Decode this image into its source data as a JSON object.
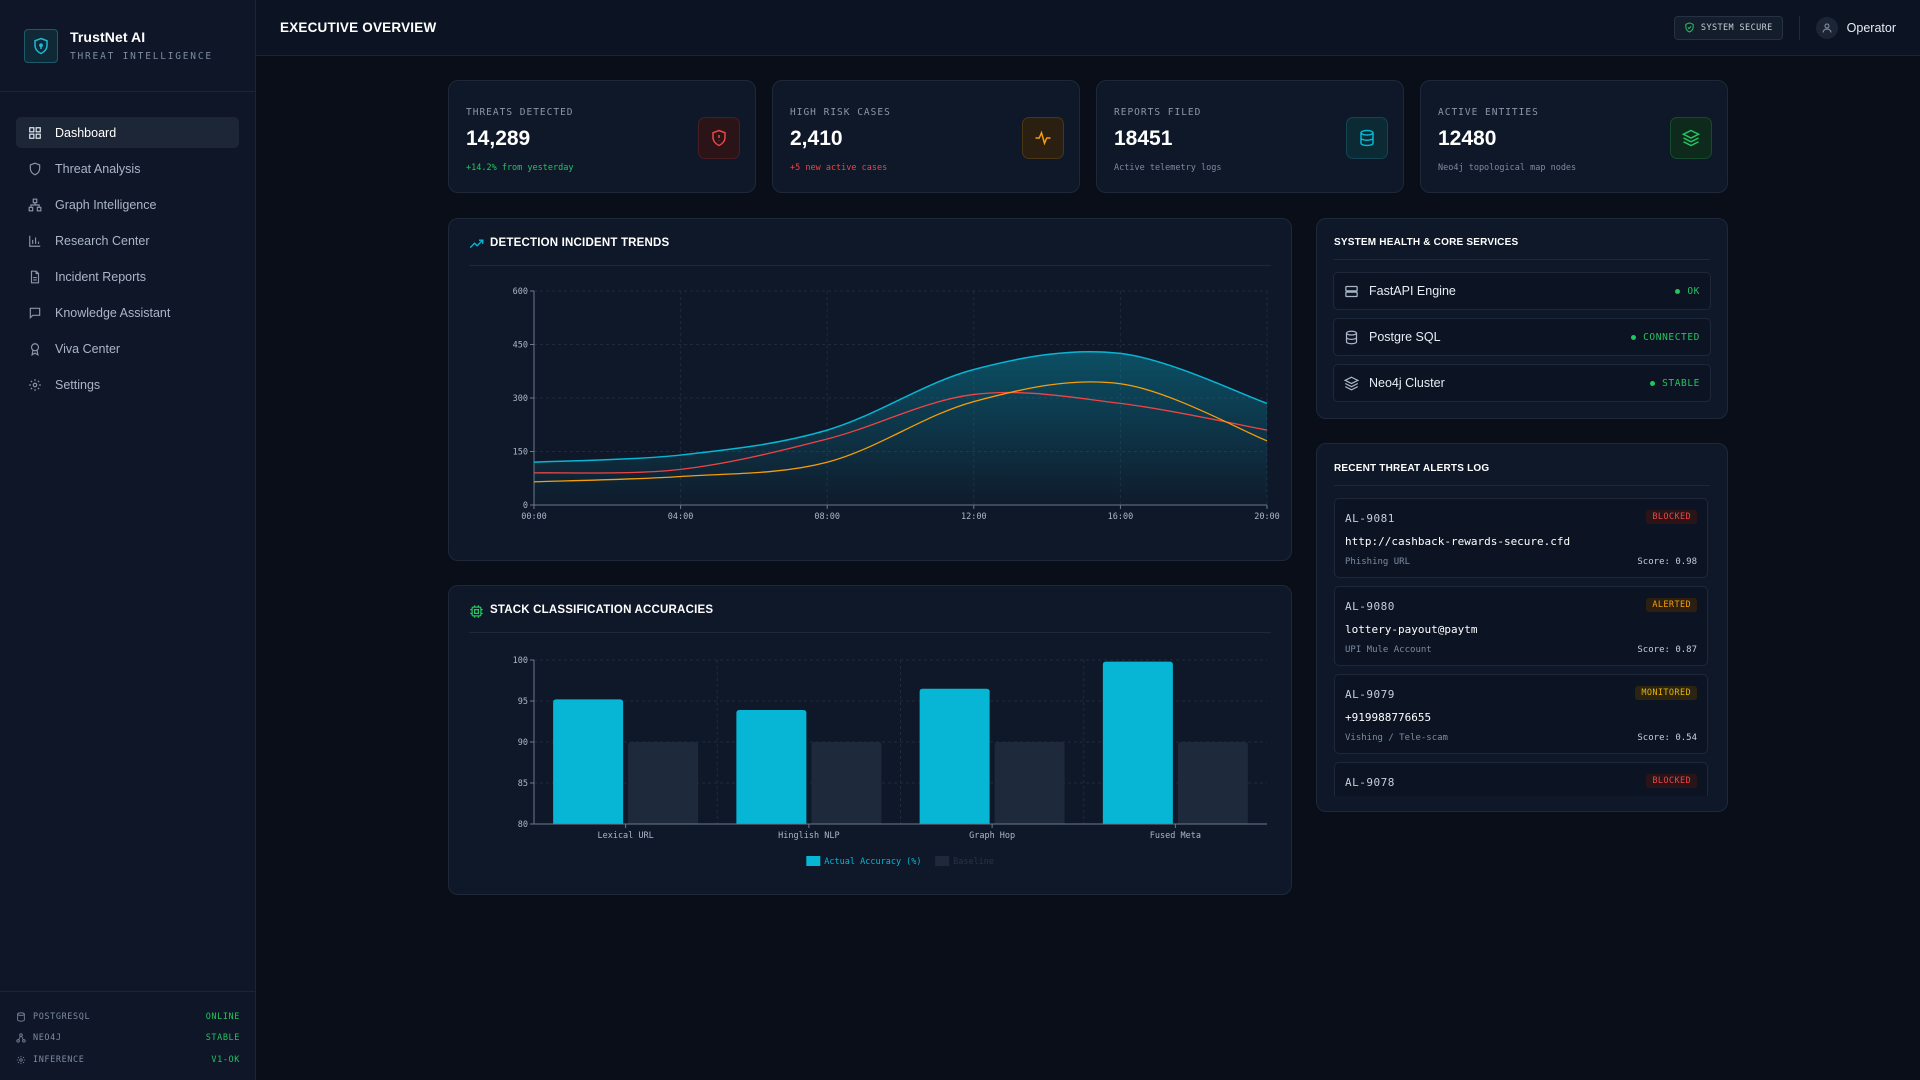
{
  "brand": {
    "name": "TrustNet AI",
    "subtitle": "THREAT INTELLIGENCE"
  },
  "sidebar": {
    "items": [
      {
        "label": "Dashboard",
        "icon": "grid-icon",
        "active": true
      },
      {
        "label": "Threat Analysis",
        "icon": "shield-icon"
      },
      {
        "label": "Graph Intelligence",
        "icon": "network-icon"
      },
      {
        "label": "Research Center",
        "icon": "bar-chart-icon"
      },
      {
        "label": "Incident Reports",
        "icon": "document-icon"
      },
      {
        "label": "Knowledge Assistant",
        "icon": "chat-icon"
      },
      {
        "label": "Viva Center",
        "icon": "award-icon"
      },
      {
        "label": "Settings",
        "icon": "gear-icon"
      }
    ],
    "footer": [
      {
        "label": "POSTGRESQL",
        "value": "ONLINE"
      },
      {
        "label": "NEO4J",
        "value": "STABLE"
      },
      {
        "label": "INFERENCE",
        "value": "V1-OK"
      }
    ]
  },
  "header": {
    "title": "EXECUTIVE OVERVIEW",
    "status_badge": "SYSTEM SECURE",
    "user": "Operator"
  },
  "stats": [
    {
      "label": "THREATS DETECTED",
      "value": "14,289",
      "sub": "+14.2% from yesterday",
      "sub_color": "#22c55e",
      "icon": "shield-alert-icon",
      "accent": "#ef4444",
      "bg": "#2a1418",
      "border": "#4a1d22"
    },
    {
      "label": "HIGH RISK CASES",
      "value": "2,410",
      "sub": "+5 new active cases",
      "sub_color": "#ef4444",
      "icon": "pulse-icon",
      "accent": "#f59e0b",
      "bg": "#2a1f10",
      "border": "#4a3515"
    },
    {
      "label": "REPORTS FILED",
      "value": "18451",
      "sub": "Active telemetry logs",
      "sub_color": "#7d8ba0",
      "icon": "database-icon",
      "accent": "#06b6d4",
      "bg": "#0c2a33",
      "border": "#134555"
    },
    {
      "label": "ACTIVE ENTITIES",
      "value": "12480",
      "sub": "Neo4j topological map nodes",
      "sub_color": "#7d8ba0",
      "icon": "layers-icon",
      "accent": "#22c55e",
      "bg": "#0e2a1c",
      "border": "#154a2c"
    }
  ],
  "trend_panel": {
    "title": "DETECTION INCIDENT TRENDS"
  },
  "accuracy_panel": {
    "title": "STACK CLASSIFICATION ACCURACIES"
  },
  "health_panel": {
    "title": "SYSTEM HEALTH & CORE SERVICES",
    "services": [
      {
        "name": "FastAPI Engine",
        "status": "OK",
        "icon": "server-icon"
      },
      {
        "name": "Postgre SQL",
        "status": "CONNECTED",
        "icon": "database-icon"
      },
      {
        "name": "Neo4j Cluster",
        "status": "STABLE",
        "icon": "layers-icon"
      }
    ]
  },
  "alerts_panel": {
    "title": "RECENT THREAT ALERTS LOG",
    "alerts": [
      {
        "id": "AL-9081",
        "status": "BLOCKED",
        "target": "http://cashback-rewards-secure.cfd",
        "category": "Phishing URL",
        "score": "Score: 0.98"
      },
      {
        "id": "AL-9080",
        "status": "ALERTED",
        "target": "lottery-payout@paytm",
        "category": "UPI Mule Account",
        "score": "Score: 0.87"
      },
      {
        "id": "AL-9079",
        "status": "MONITORED",
        "target": "+919988776655",
        "category": "Vishing / Tele-scam",
        "score": "Score: 0.54"
      },
      {
        "id": "AL-9078",
        "status": "BLOCKED",
        "target": "",
        "category": "",
        "score": ""
      }
    ]
  },
  "chart_data": [
    {
      "type": "area",
      "x": [
        "00:00",
        "04:00",
        "08:00",
        "12:00",
        "16:00",
        "20:00"
      ],
      "ylim": [
        0,
        600
      ],
      "yticks": [
        0,
        150,
        300,
        450,
        600
      ],
      "series": [
        {
          "color": "#06b6d4",
          "values": [
            120,
            140,
            210,
            380,
            425,
            285
          ]
        },
        {
          "color": "#ef4444",
          "values": [
            90,
            100,
            185,
            310,
            285,
            210
          ]
        },
        {
          "color": "#f59e0b",
          "values": [
            65,
            80,
            120,
            290,
            340,
            180
          ]
        }
      ]
    },
    {
      "type": "bar",
      "categories": [
        "Lexical URL",
        "Hinglish NLP",
        "Graph Hop",
        "Fused Meta"
      ],
      "ylim": [
        80,
        100
      ],
      "yticks": [
        80,
        85,
        90,
        95,
        100
      ],
      "series": [
        {
          "name": "Actual Accuracy (%)",
          "color": "#06b6d4",
          "values": [
            95.2,
            93.9,
            96.5,
            99.8
          ]
        },
        {
          "name": "Baseline",
          "color": "#1e293b",
          "values": [
            90,
            90,
            90,
            90
          ]
        }
      ]
    }
  ]
}
